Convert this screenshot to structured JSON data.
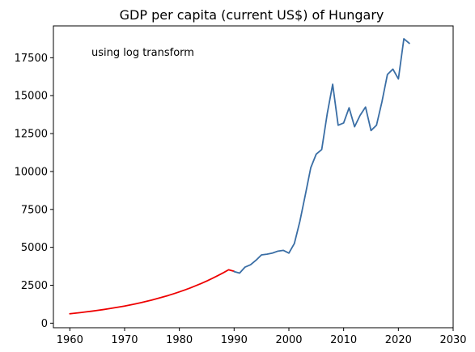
{
  "chart_data": {
    "type": "line",
    "title": "GDP per capita (current US$) of Hungary",
    "xlabel": "",
    "ylabel": "",
    "annotation": "using log transform",
    "xlim": [
      1957,
      2030
    ],
    "ylim": [
      -300,
      19600
    ],
    "xticks": [
      1960,
      1970,
      1980,
      1990,
      2000,
      2010,
      2020,
      2030
    ],
    "yticks": [
      0,
      2500,
      5000,
      7500,
      10000,
      12500,
      15000,
      17500
    ],
    "grid": false,
    "series": [
      {
        "color": "#ee0000",
        "x": [
          1960,
          1961,
          1962,
          1963,
          1964,
          1965,
          1966,
          1967,
          1968,
          1969,
          1970,
          1971,
          1972,
          1973,
          1974,
          1975,
          1976,
          1977,
          1978,
          1979,
          1980,
          1981,
          1982,
          1983,
          1984,
          1985,
          1986,
          1987,
          1988,
          1989,
          1990
        ],
        "y": [
          620,
          660,
          700,
          745,
          790,
          840,
          890,
          945,
          1005,
          1065,
          1130,
          1200,
          1275,
          1355,
          1440,
          1530,
          1625,
          1725,
          1830,
          1945,
          2065,
          2190,
          2325,
          2470,
          2620,
          2780,
          2950,
          3130,
          3320,
          3520,
          3420
        ]
      },
      {
        "color": "#3a6ea5",
        "x": [
          1990,
          1991,
          1992,
          1993,
          1994,
          1995,
          1996,
          1997,
          1998,
          1999,
          2000,
          2001,
          2002,
          2003,
          2004,
          2005,
          2006,
          2007,
          2008,
          2009,
          2010,
          2011,
          2012,
          2013,
          2014,
          2015,
          2016,
          2017,
          2018,
          2019,
          2020,
          2021,
          2022
        ],
        "y": [
          3400,
          3300,
          3700,
          3850,
          4150,
          4500,
          4550,
          4620,
          4750,
          4800,
          4620,
          5250,
          6700,
          8450,
          10250,
          11150,
          11450,
          13800,
          15750,
          13050,
          13200,
          14200,
          12950,
          13700,
          14250,
          12700,
          13050,
          14600,
          16400,
          16750,
          16100,
          18750,
          18450
        ]
      }
    ]
  }
}
